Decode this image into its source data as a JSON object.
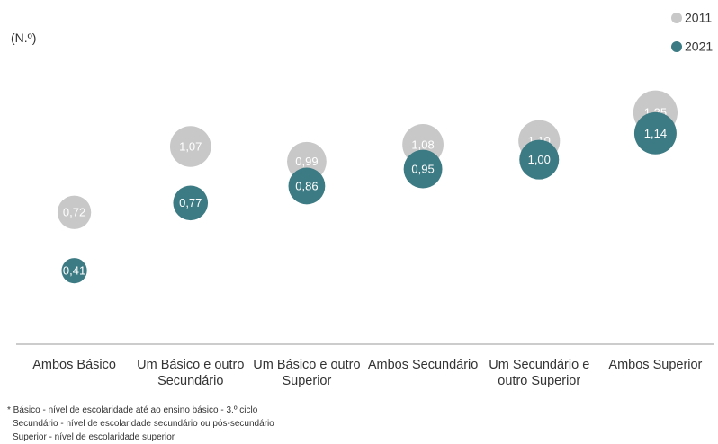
{
  "chart_data": {
    "type": "bubble",
    "unit_label": "(N.º)",
    "categories": [
      "Ambos Básico",
      "Um Básico e outro Secundário",
      "Um Básico e outro Superior",
      "Ambos Secundário",
      "Um Secundário e outro Superior",
      "Ambos Superior"
    ],
    "series": [
      {
        "name": "2011",
        "color": "#c8c8c8",
        "values": [
          0.72,
          1.07,
          0.99,
          1.08,
          1.1,
          1.25
        ],
        "value_labels": [
          "0,72",
          "1,07",
          "0,99",
          "1,08",
          "1,10",
          "1,25"
        ]
      },
      {
        "name": "2021",
        "color": "#3d7b84",
        "values": [
          0.41,
          0.77,
          0.86,
          0.95,
          1.0,
          1.14
        ],
        "value_labels": [
          "0,41",
          "0,77",
          "0,86",
          "0,95",
          "1,00",
          "1,14"
        ]
      }
    ],
    "ylim": [
      0,
      1.6
    ],
    "legend": "top-right",
    "footnotes": [
      "* Básico - nível de escolaridade até ao ensino básico - 3.º ciclo",
      "Secundário - nível de escolaridade secundário ou pós-secundário",
      "Superior - nível de escolaridade superior"
    ]
  }
}
